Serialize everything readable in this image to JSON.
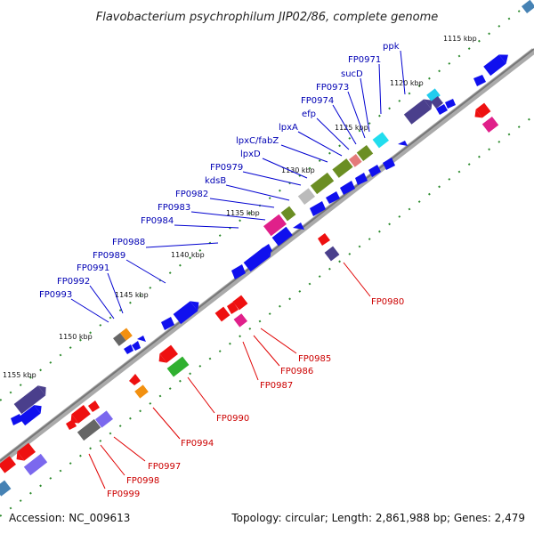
{
  "title": "Flavobacterium psychrophilum JIP02/86, complete genome",
  "footer": {
    "accession": "Accession: NC_009613",
    "summary": "Topology: circular; Length: 2,861,988 bp; Genes: 2,479"
  },
  "ticks": [
    "1115 kbp",
    "1120 kbp",
    "1125 kbp",
    "1130 kbp",
    "1135 kbp",
    "1140 kbp",
    "1145 kbp",
    "1150 kbp",
    "1155 kbp"
  ],
  "forward_labels": [
    "ppk",
    "FP0971",
    "sucD",
    "FP0973",
    "FP0974",
    "efp",
    "lpxA",
    "lpxC/fabZ",
    "lpxD",
    "FP0979",
    "kdsB",
    "FP0982",
    "FP0983",
    "FP0984",
    "FP0988",
    "FP0989",
    "FP0991",
    "FP0992",
    "FP0993"
  ],
  "reverse_labels": [
    "FP0980",
    "FP0985",
    "FP0986",
    "FP0987",
    "FP0990",
    "FP0994",
    "FP0997",
    "FP0998",
    "FP0999"
  ],
  "colors": {
    "backbone": "#808080",
    "forward_gene": "#0000ee",
    "reverse_gene": "#ee0000",
    "dots": "#2e8b2e",
    "purple": "#4a3f8c",
    "olive": "#6b8e23",
    "magenta": "#e0208a",
    "cyan": "#22ccee",
    "orange": "#f29010",
    "green": "#30b030",
    "gray": "#666666"
  }
}
